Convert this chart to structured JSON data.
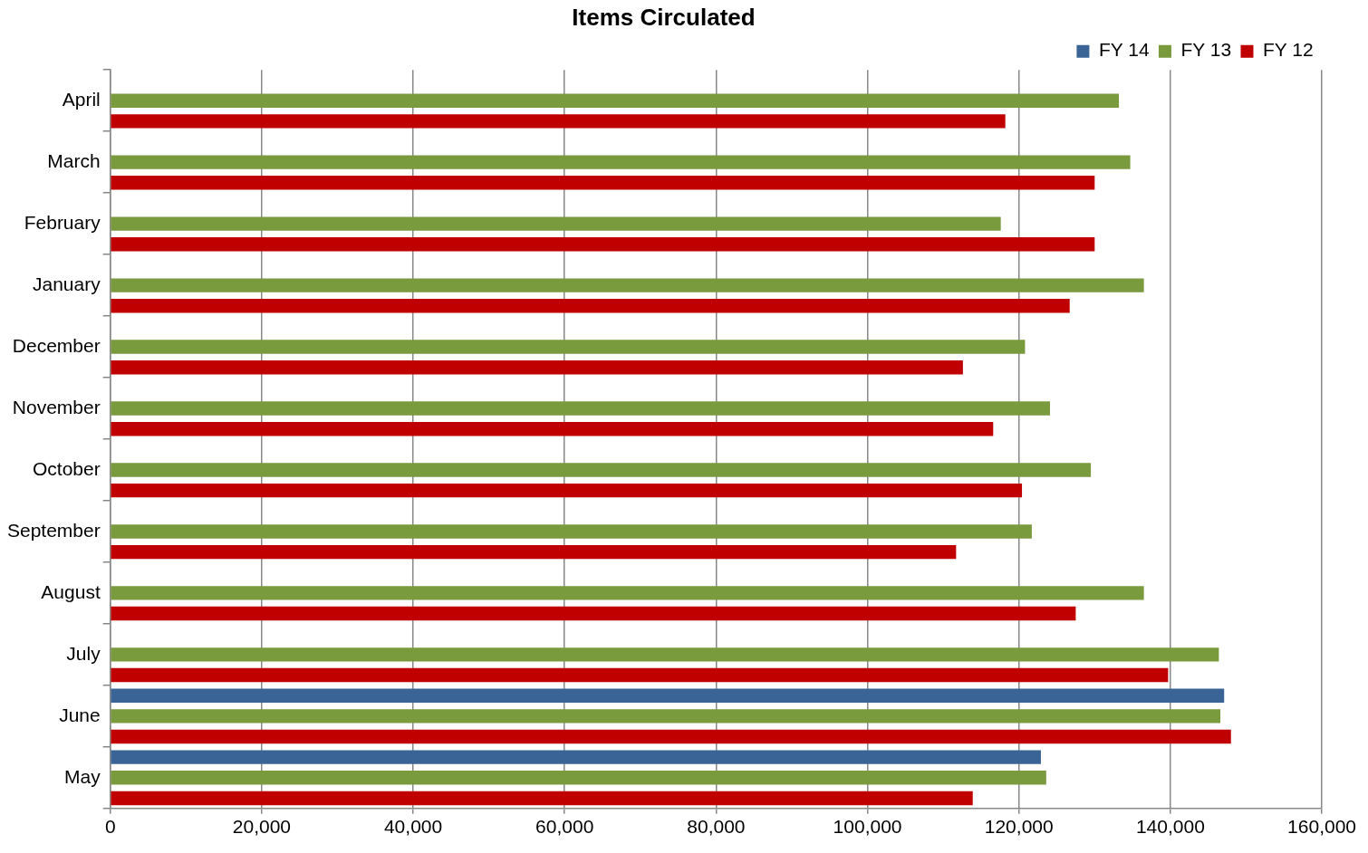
{
  "chart_data": {
    "type": "bar",
    "orientation": "horizontal",
    "title": "Items Circulated",
    "categories": [
      "April",
      "March",
      "February",
      "January",
      "December",
      "November",
      "October",
      "September",
      "August",
      "July",
      "June",
      "May"
    ],
    "series": [
      {
        "name": "FY 14",
        "color": "#3b6496",
        "values": [
          null,
          null,
          null,
          null,
          null,
          null,
          null,
          null,
          null,
          null,
          147100,
          122900
        ]
      },
      {
        "name": "FY 13",
        "color": "#7a9a3e",
        "values": [
          133200,
          134700,
          117600,
          136500,
          120800,
          124100,
          129500,
          121700,
          136500,
          146400,
          146600,
          123600
        ]
      },
      {
        "name": "FY 12",
        "color": "#c00000",
        "values": [
          118200,
          130000,
          130000,
          126700,
          112600,
          116600,
          120400,
          111700,
          127500,
          139700,
          148000,
          113900
        ]
      }
    ],
    "xlim": [
      0,
      160000
    ],
    "xticks": [
      0,
      {
        "value": 20000,
        "label": "20,000"
      },
      {
        "value": 40000,
        "label": "40,000"
      },
      {
        "value": 60000,
        "label": "60,000"
      },
      {
        "value": 80000,
        "label": "80,000"
      },
      {
        "value": 100000,
        "label": "100,000"
      },
      {
        "value": 120000,
        "label": "120,000"
      },
      {
        "value": 140000,
        "label": "140,000"
      },
      {
        "value": 160000,
        "label": "160,000"
      }
    ],
    "grid": "x",
    "legend": "top right"
  }
}
